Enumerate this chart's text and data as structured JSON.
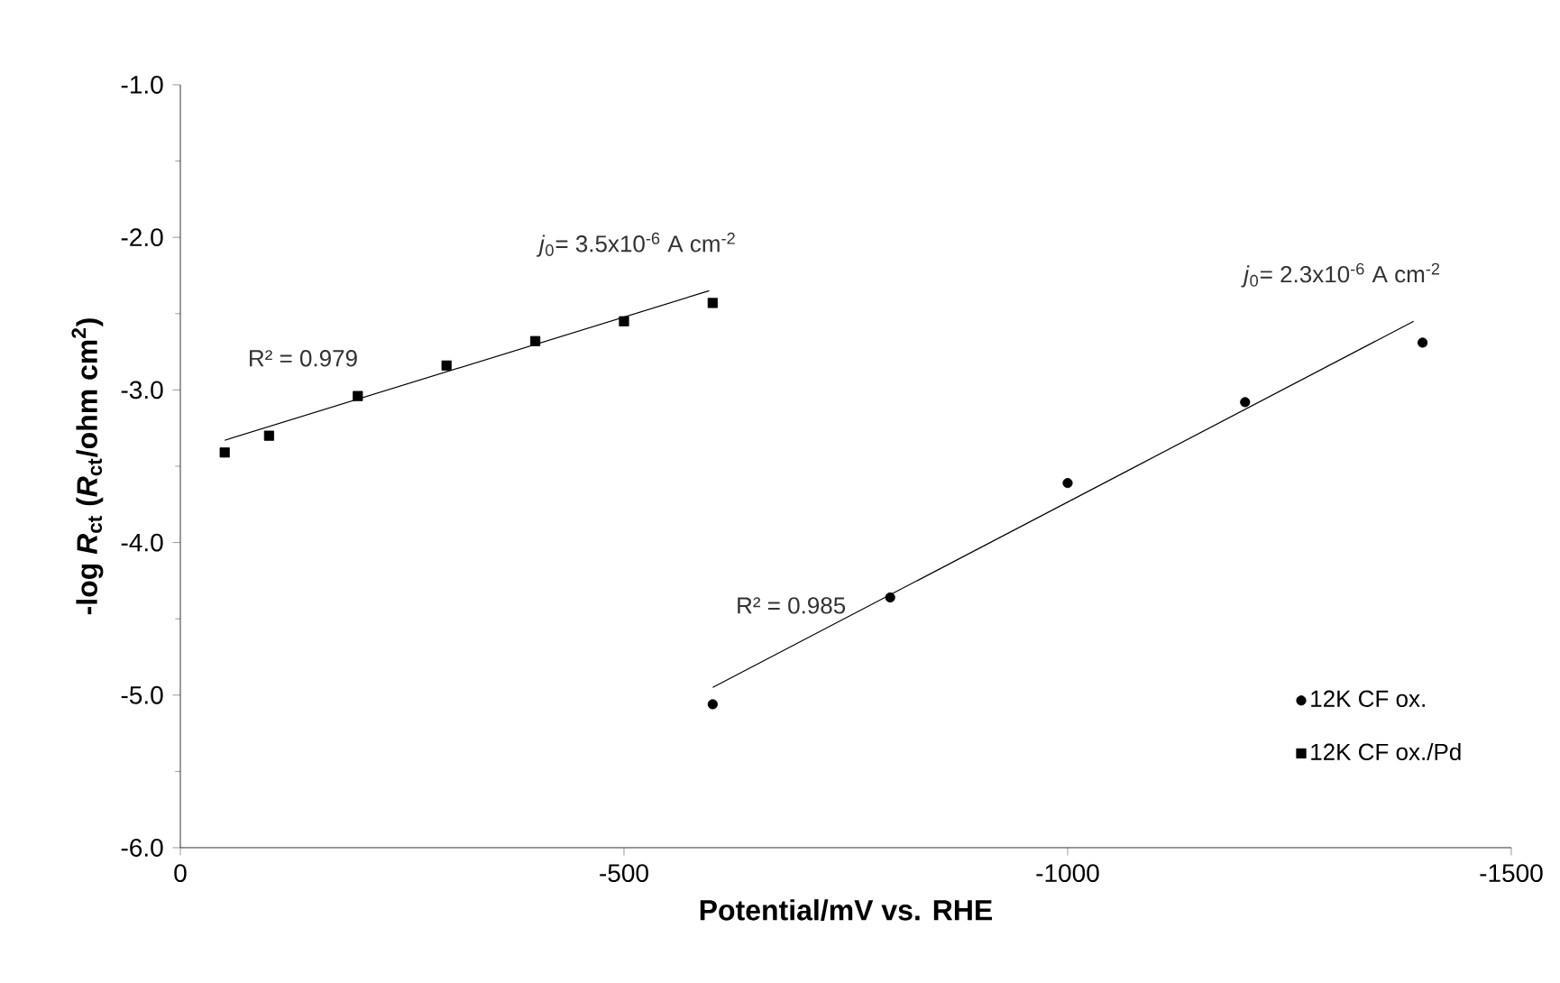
{
  "chart_data": {
    "type": "scatter",
    "xlabel": "Potential/mV vs. RHE",
    "ylabel": "-log *R*$_{ct}$ (*R*$_{ct}$/ohm cm$^{2}$)",
    "xlim": [
      0,
      -1500
    ],
    "xticks": [
      0,
      -500,
      -1000,
      -1500
    ],
    "ylim": [
      -6,
      -1
    ],
    "yticks": [
      {
        "value": -6,
        "label": "-6.0"
      },
      {
        "value": -5,
        "label": "-5.0"
      },
      {
        "value": -4,
        "label": "-4.0"
      },
      {
        "value": -3,
        "label": "-3.0"
      },
      {
        "value": -2,
        "label": "-2.0"
      },
      {
        "value": -1,
        "label": "-1.0"
      }
    ],
    "legend": "bottom right",
    "grid": false,
    "series": [
      {
        "name": "12K CF ox.",
        "marker": "circle",
        "color": "#000000",
        "x": [
          -600,
          -800,
          -1000,
          -1200,
          -1400
        ],
        "values": [
          -5.06,
          -4.36,
          -3.61,
          -3.08,
          -2.69
        ]
      },
      {
        "name": "12K CF ox./Pd",
        "marker": "square",
        "color": "#000000",
        "x": [
          -50,
          -100,
          -200,
          -300,
          -400,
          -500,
          -600
        ],
        "values": [
          -3.41,
          -3.3,
          -3.04,
          -2.84,
          -2.68,
          -2.55,
          -2.43
        ]
      },
      {
        "type": "line",
        "marker": "none",
        "color": "#000000",
        "x": [
          -50,
          -596
        ],
        "values": [
          -3.33,
          -2.35
        ]
      },
      {
        "type": "line",
        "marker": "none",
        "color": "#000000",
        "x": [
          -600,
          -1390
        ],
        "values": [
          -4.95,
          -2.55
        ]
      }
    ],
    "annotations": [
      "R² = 0.979",
      "*j*$_{0}$= 3.5x10$^{-6}$ A  cm$^{-2}$",
      "R² = 0.985",
      "*j*$_{0}$= 2.3x10$^{-6}$ A  cm$^{-2}$"
    ]
  }
}
